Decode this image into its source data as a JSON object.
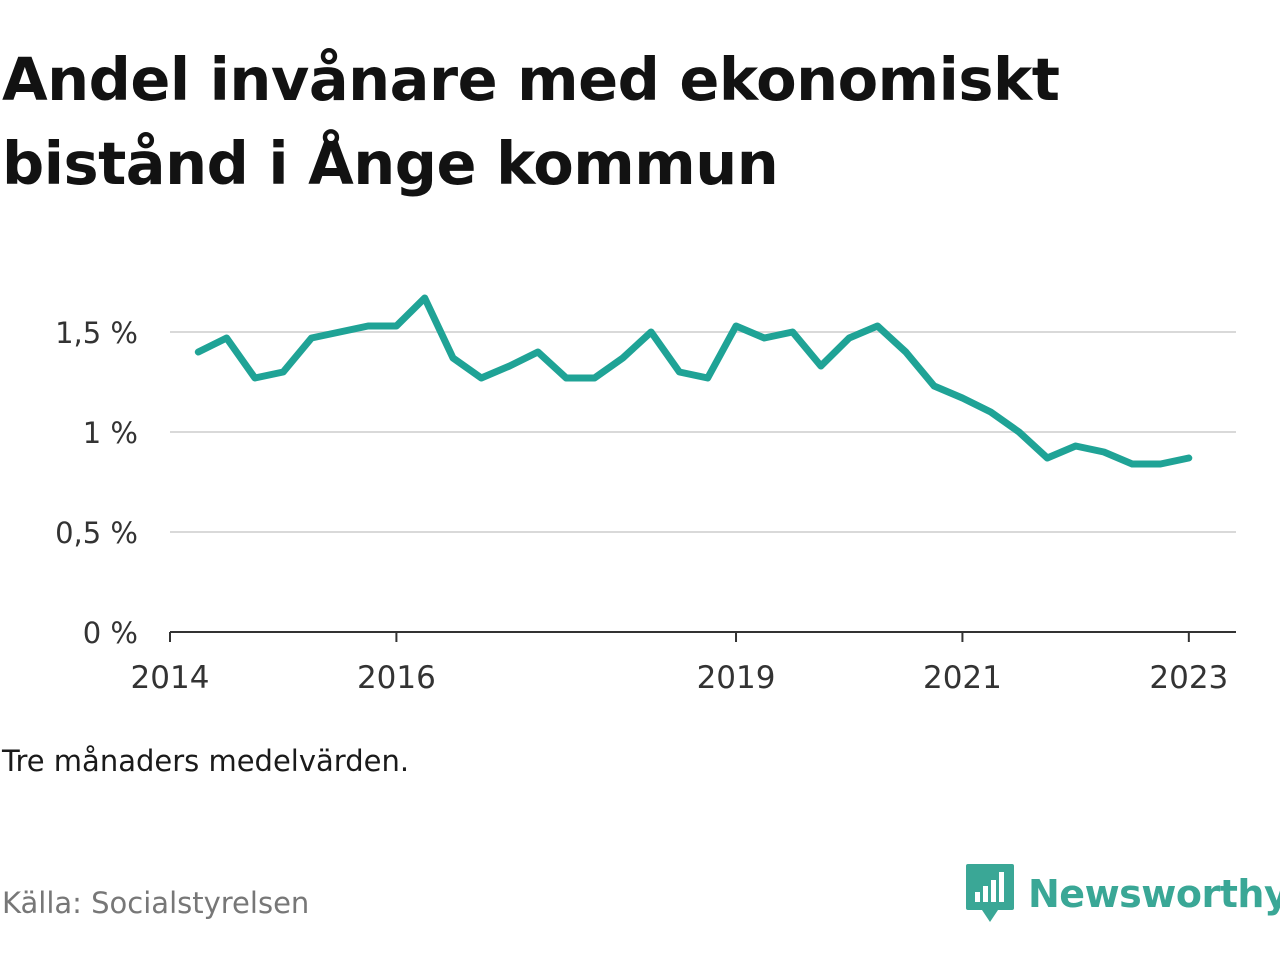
{
  "title": "Andel invånare med ekonomiskt bistånd i Ånge kommun",
  "note": "Tre månaders medelvärden.",
  "source": "Källa: Socialstyrelsen",
  "brand": {
    "name": "Newsworthy",
    "icon": "newsworthy-chart-icon",
    "color": "#3aa796"
  },
  "chart_data": {
    "type": "line",
    "title": "Andel invånare med ekonomiskt bistånd i Ånge kommun",
    "xlabel": "",
    "ylabel": "",
    "grid": true,
    "ylim": [
      0,
      1.5
    ],
    "y_ticks": [
      {
        "value": 0,
        "label": "0 %"
      },
      {
        "value": 0.5,
        "label": "0,5 %"
      },
      {
        "value": 1,
        "label": "1 %"
      },
      {
        "value": 1.5,
        "label": "1,5 %"
      }
    ],
    "x_ticks": [
      "2014",
      "2016",
      "2019",
      "2021",
      "2023"
    ],
    "x_start": "2014-01",
    "x_end": "2023-06",
    "series": [
      {
        "color": "#1fa396",
        "points": [
          {
            "x": "2014-04",
            "y": 1.4
          },
          {
            "x": "2014-07",
            "y": 1.47
          },
          {
            "x": "2014-10",
            "y": 1.27
          },
          {
            "x": "2015-01",
            "y": 1.3
          },
          {
            "x": "2015-04",
            "y": 1.47
          },
          {
            "x": "2015-07",
            "y": 1.5
          },
          {
            "x": "2015-10",
            "y": 1.53
          },
          {
            "x": "2016-01",
            "y": 1.53
          },
          {
            "x": "2016-04",
            "y": 1.67
          },
          {
            "x": "2016-07",
            "y": 1.37
          },
          {
            "x": "2016-10",
            "y": 1.27
          },
          {
            "x": "2017-01",
            "y": 1.33
          },
          {
            "x": "2017-04",
            "y": 1.4
          },
          {
            "x": "2017-07",
            "y": 1.27
          },
          {
            "x": "2017-10",
            "y": 1.27
          },
          {
            "x": "2018-01",
            "y": 1.37
          },
          {
            "x": "2018-04",
            "y": 1.5
          },
          {
            "x": "2018-07",
            "y": 1.3
          },
          {
            "x": "2018-10",
            "y": 1.27
          },
          {
            "x": "2019-01",
            "y": 1.53
          },
          {
            "x": "2019-04",
            "y": 1.47
          },
          {
            "x": "2019-07",
            "y": 1.5
          },
          {
            "x": "2019-10",
            "y": 1.33
          },
          {
            "x": "2020-01",
            "y": 1.47
          },
          {
            "x": "2020-04",
            "y": 1.53
          },
          {
            "x": "2020-07",
            "y": 1.4
          },
          {
            "x": "2020-10",
            "y": 1.23
          },
          {
            "x": "2021-01",
            "y": 1.17
          },
          {
            "x": "2021-04",
            "y": 1.1
          },
          {
            "x": "2021-07",
            "y": 1.0
          },
          {
            "x": "2021-10",
            "y": 0.87
          },
          {
            "x": "2022-01",
            "y": 0.93
          },
          {
            "x": "2022-04",
            "y": 0.9
          },
          {
            "x": "2022-07",
            "y": 0.84
          },
          {
            "x": "2022-10",
            "y": 0.84
          },
          {
            "x": "2023-01",
            "y": 0.87
          }
        ]
      }
    ]
  }
}
